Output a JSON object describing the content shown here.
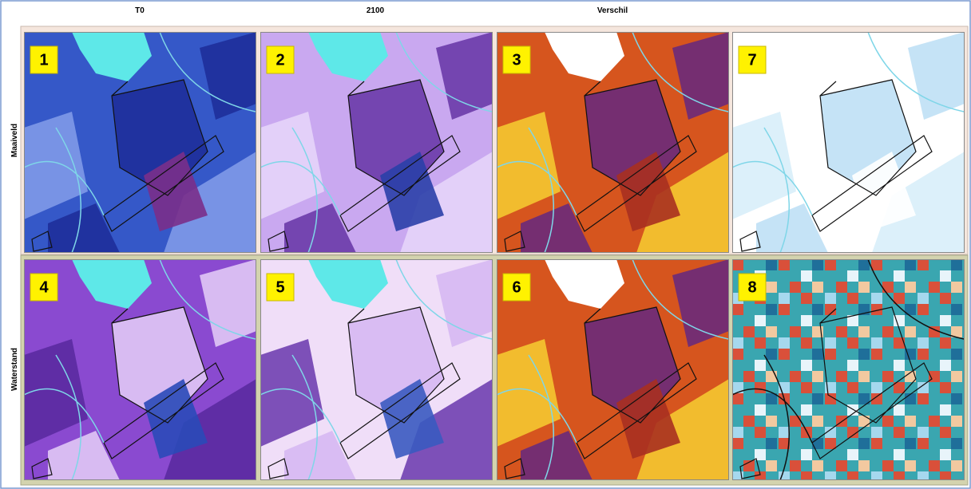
{
  "columns": [
    "T0",
    "2100",
    "Verschil"
  ],
  "rows": [
    "Maaiveld",
    "Waterstand"
  ],
  "panels": [
    [
      "1",
      "2",
      "3",
      "7"
    ],
    [
      "4",
      "5",
      "6",
      "8"
    ]
  ]
}
